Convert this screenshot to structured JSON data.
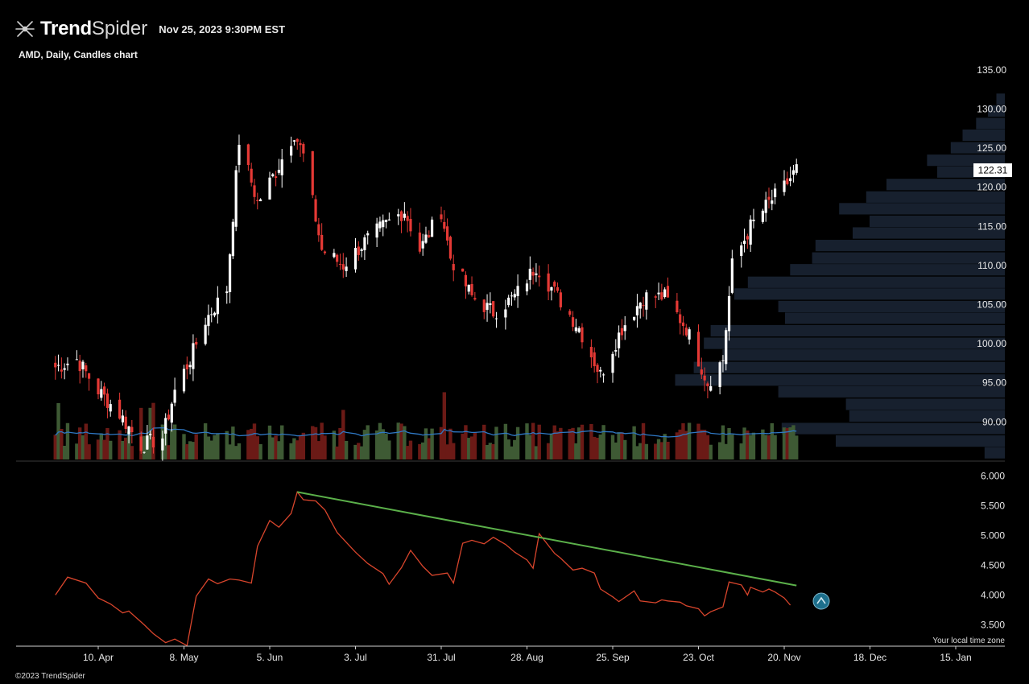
{
  "header": {
    "brand_bold": "Trend",
    "brand_light": "Spider",
    "timestamp": "Nov 25, 2023 9:30PM EST"
  },
  "symbol_line": "AMD, Daily, Candles chart",
  "timezone_label": "Your local time zone",
  "copyright": "©2023 TrendSpider",
  "icons": {
    "logo": "trendspider-logo-icon",
    "alert": "alert-chevron-icon"
  },
  "colors": {
    "background": "#000000",
    "up_candle": "#ffffff",
    "down_candle": "#e53935",
    "up_volume": "#3e5a34",
    "down_volume": "#6b1a16",
    "volume_ma": "#2f78c4",
    "volume_profile": "#17202e",
    "indicator_line": "#d8452c",
    "trendline": "#5bb04a",
    "alert_fill": "#1d6f8c"
  },
  "chart_data": [
    {
      "type": "candlestick",
      "symbol": "AMD",
      "interval": "Daily",
      "x_tick_labels": [
        "10. Apr",
        "8. May",
        "5. Jun",
        "3. Jul",
        "31. Jul",
        "28. Aug",
        "25. Sep",
        "23. Oct",
        "20. Nov",
        "18. Dec",
        "15. Jan"
      ],
      "y_tick_labels": [
        "135.00",
        "130.00",
        "125.00",
        "120.00",
        "115.00",
        "110.00",
        "105.00",
        "100.00",
        "95.00",
        "90.00"
      ],
      "ylim": [
        85.4,
        135.4
      ],
      "last_price_label": "122.31",
      "close_path": [
        [
          "2023-03-27",
          97
        ],
        [
          "2023-04-03",
          98
        ],
        [
          "2023-04-10",
          94
        ],
        [
          "2023-04-17",
          91
        ],
        [
          "2023-04-24",
          87
        ],
        [
          "2023-05-01",
          88
        ],
        [
          "2023-05-05",
          94
        ],
        [
          "2023-05-10",
          98
        ],
        [
          "2023-05-15",
          103
        ],
        [
          "2023-05-22",
          107
        ],
        [
          "2023-05-26",
          126
        ],
        [
          "2023-06-01",
          118
        ],
        [
          "2023-06-07",
          122
        ],
        [
          "2023-06-13",
          127
        ],
        [
          "2023-06-16",
          124
        ],
        [
          "2023-06-22",
          112
        ],
        [
          "2023-06-29",
          110
        ],
        [
          "2023-07-06",
          113
        ],
        [
          "2023-07-12",
          115
        ],
        [
          "2023-07-19",
          117
        ],
        [
          "2023-07-24",
          112
        ],
        [
          "2023-07-31",
          117
        ],
        [
          "2023-08-03",
          111
        ],
        [
          "2023-08-10",
          106
        ],
        [
          "2023-08-17",
          104
        ],
        [
          "2023-08-24",
          106
        ],
        [
          "2023-08-31",
          110
        ],
        [
          "2023-09-07",
          106
        ],
        [
          "2023-09-14",
          102
        ],
        [
          "2023-09-21",
          96
        ],
        [
          "2023-09-28",
          102
        ],
        [
          "2023-10-05",
          106
        ],
        [
          "2023-10-12",
          106
        ],
        [
          "2023-10-19",
          102
        ],
        [
          "2023-10-26",
          95
        ],
        [
          "2023-10-31",
          98
        ],
        [
          "2023-11-03",
          110
        ],
        [
          "2023-11-09",
          115
        ],
        [
          "2023-11-15",
          118
        ],
        [
          "2023-11-20",
          120
        ],
        [
          "2023-11-24",
          122.31
        ]
      ],
      "volume_profile_levels": [
        [
          131.2,
          0.05
        ],
        [
          129.7,
          0.1
        ],
        [
          128.1,
          0.17
        ],
        [
          126.6,
          0.25
        ],
        [
          125.0,
          0.32
        ],
        [
          123.4,
          0.46
        ],
        [
          121.9,
          0.4
        ],
        [
          120.3,
          0.7
        ],
        [
          118.7,
          0.82
        ],
        [
          117.2,
          0.98
        ],
        [
          115.6,
          0.8
        ],
        [
          114.1,
          0.9
        ],
        [
          112.5,
          1.12
        ],
        [
          110.9,
          1.14
        ],
        [
          109.4,
          1.27
        ],
        [
          107.8,
          1.52
        ],
        [
          106.3,
          1.6
        ],
        [
          104.7,
          1.34
        ],
        [
          103.2,
          1.3
        ],
        [
          101.6,
          1.74
        ],
        [
          100.0,
          1.78
        ],
        [
          98.5,
          1.67
        ],
        [
          96.9,
          1.84
        ],
        [
          95.3,
          1.95
        ],
        [
          93.8,
          1.34
        ],
        [
          92.2,
          0.94
        ],
        [
          90.7,
          0.92
        ],
        [
          89.1,
          1.32
        ],
        [
          87.5,
          1.0
        ],
        [
          86.0,
          0.12
        ]
      ]
    },
    {
      "type": "line",
      "y_tick_labels": [
        "6.000",
        "5.500",
        "5.000",
        "4.500",
        "4.000",
        "3.500"
      ],
      "ylim": [
        3.06,
        6.06
      ],
      "series": [
        {
          "values": [
            [
              "2023-03-27",
              4.0
            ],
            [
              "2023-03-31",
              4.3
            ],
            [
              "2023-04-06",
              4.2
            ],
            [
              "2023-04-10",
              3.95
            ],
            [
              "2023-04-14",
              3.85
            ],
            [
              "2023-04-18",
              3.7
            ],
            [
              "2023-04-20",
              3.73
            ],
            [
              "2023-04-25",
              3.5
            ],
            [
              "2023-04-28",
              3.35
            ],
            [
              "2023-05-02",
              3.2
            ],
            [
              "2023-05-05",
              3.26
            ],
            [
              "2023-05-09",
              3.15
            ],
            [
              "2023-05-12",
              3.98
            ],
            [
              "2023-05-16",
              4.27
            ],
            [
              "2023-05-19",
              4.19
            ],
            [
              "2023-05-23",
              4.27
            ],
            [
              "2023-05-26",
              4.25
            ],
            [
              "2023-05-30",
              4.2
            ],
            [
              "2023-06-01",
              4.82
            ],
            [
              "2023-06-05",
              5.25
            ],
            [
              "2023-06-08",
              5.14
            ],
            [
              "2023-06-12",
              5.37
            ],
            [
              "2023-06-14",
              5.73
            ],
            [
              "2023-06-16",
              5.6
            ],
            [
              "2023-06-20",
              5.58
            ],
            [
              "2023-06-23",
              5.43
            ],
            [
              "2023-06-27",
              5.05
            ],
            [
              "2023-07-03",
              4.72
            ],
            [
              "2023-07-07",
              4.53
            ],
            [
              "2023-07-12",
              4.36
            ],
            [
              "2023-07-14",
              4.18
            ],
            [
              "2023-07-18",
              4.46
            ],
            [
              "2023-07-21",
              4.75
            ],
            [
              "2023-07-25",
              4.48
            ],
            [
              "2023-07-28",
              4.33
            ],
            [
              "2023-08-02",
              4.37
            ],
            [
              "2023-08-04",
              4.2
            ],
            [
              "2023-08-07",
              4.87
            ],
            [
              "2023-08-10",
              4.92
            ],
            [
              "2023-08-14",
              4.86
            ],
            [
              "2023-08-17",
              4.97
            ],
            [
              "2023-08-21",
              4.85
            ],
            [
              "2023-08-24",
              4.72
            ],
            [
              "2023-08-28",
              4.59
            ],
            [
              "2023-08-30",
              4.45
            ],
            [
              "2023-09-01",
              5.03
            ],
            [
              "2023-09-06",
              4.7
            ],
            [
              "2023-09-08",
              4.62
            ],
            [
              "2023-09-12",
              4.42
            ],
            [
              "2023-09-15",
              4.45
            ],
            [
              "2023-09-19",
              4.37
            ],
            [
              "2023-09-21",
              4.1
            ],
            [
              "2023-09-25",
              3.97
            ],
            [
              "2023-09-27",
              3.89
            ],
            [
              "2023-10-02",
              4.07
            ],
            [
              "2023-10-04",
              3.9
            ],
            [
              "2023-10-09",
              3.87
            ],
            [
              "2023-10-11",
              3.92
            ],
            [
              "2023-10-13",
              3.9
            ],
            [
              "2023-10-17",
              3.88
            ],
            [
              "2023-10-19",
              3.82
            ],
            [
              "2023-10-23",
              3.77
            ],
            [
              "2023-10-25",
              3.65
            ],
            [
              "2023-10-27",
              3.72
            ],
            [
              "2023-10-31",
              3.8
            ],
            [
              "2023-11-02",
              4.22
            ],
            [
              "2023-11-06",
              4.17
            ],
            [
              "2023-11-08",
              4.0
            ],
            [
              "2023-11-09",
              4.13
            ],
            [
              "2023-11-13",
              4.05
            ],
            [
              "2023-11-15",
              4.1
            ],
            [
              "2023-11-17",
              4.05
            ],
            [
              "2023-11-20",
              3.95
            ],
            [
              "2023-11-22",
              3.83
            ]
          ]
        }
      ],
      "trendline": {
        "from": [
          "2023-06-14",
          5.73
        ],
        "to": [
          "2023-11-24",
          4.16
        ]
      }
    }
  ]
}
